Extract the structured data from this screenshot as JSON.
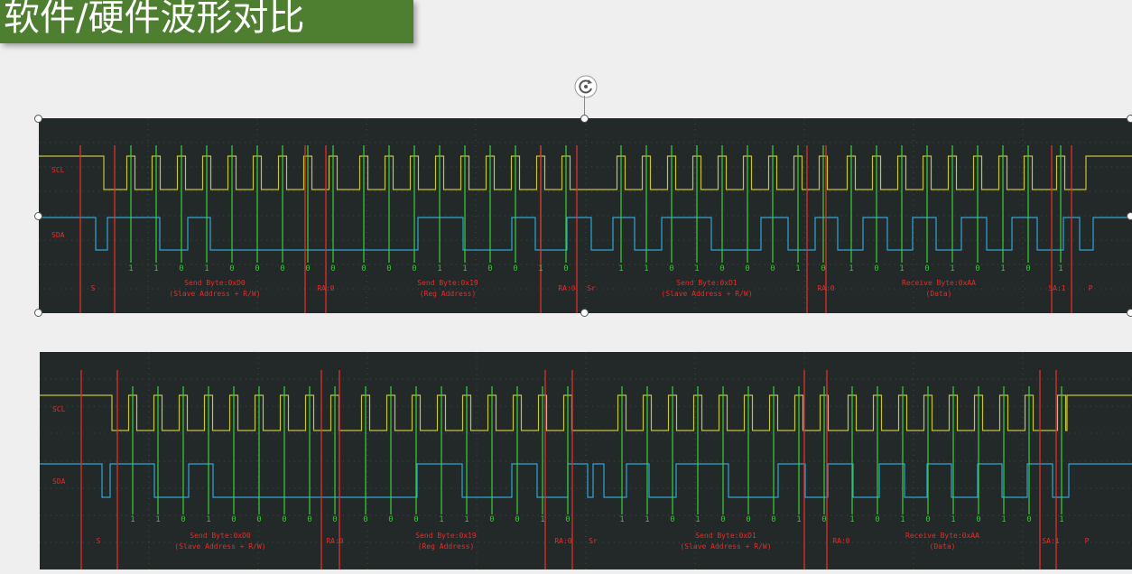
{
  "title": "软件/硬件波形对比",
  "channels": {
    "scl": "SCL",
    "sda": "SDA"
  },
  "colors": {
    "background": "#efefef",
    "title_bg": "#4e7e30",
    "panel_bg": "#232829",
    "scl": "#c8c23a",
    "sda": "#2ea6d6",
    "sample": "#38d038",
    "marker": "#e0302a",
    "text_red": "#e0302a",
    "text_bits": "#2ecc2e",
    "grid": "#3f4a45"
  },
  "bits": [
    "1",
    "1",
    "0",
    "1",
    "0",
    "0",
    "0",
    "0",
    "0",
    "0",
    "0",
    "0",
    "1",
    "1",
    "0",
    "0",
    "1",
    "0",
    "1",
    "1",
    "0",
    "1",
    "0",
    "0",
    "0",
    "1",
    "0",
    "1",
    "0",
    "1",
    "0",
    "1",
    "0",
    "1",
    "0",
    "1"
  ],
  "segments": [
    {
      "id": "start",
      "label": "S",
      "sub": ""
    },
    {
      "id": "byte1",
      "label": "Send Byte:0xD0",
      "sub": "(Slave Address + R/W)"
    },
    {
      "id": "ra1",
      "label": "RA:0",
      "sub": ""
    },
    {
      "id": "byte2",
      "label": "Send Byte:0x19",
      "sub": "(Reg Address)"
    },
    {
      "id": "ra2",
      "label": "RA:0",
      "sub": ""
    },
    {
      "id": "rstart",
      "label": "Sr",
      "sub": ""
    },
    {
      "id": "byte3",
      "label": "Send Byte:0xD1",
      "sub": "(Slave Address + R/W)"
    },
    {
      "id": "ra3",
      "label": "RA:0",
      "sub": ""
    },
    {
      "id": "byte4",
      "label": "Receive Byte:0xAA",
      "sub": "(Data)"
    },
    {
      "id": "sa",
      "label": "SA:1",
      "sub": ""
    },
    {
      "id": "stop",
      "label": "P",
      "sub": ""
    }
  ]
}
